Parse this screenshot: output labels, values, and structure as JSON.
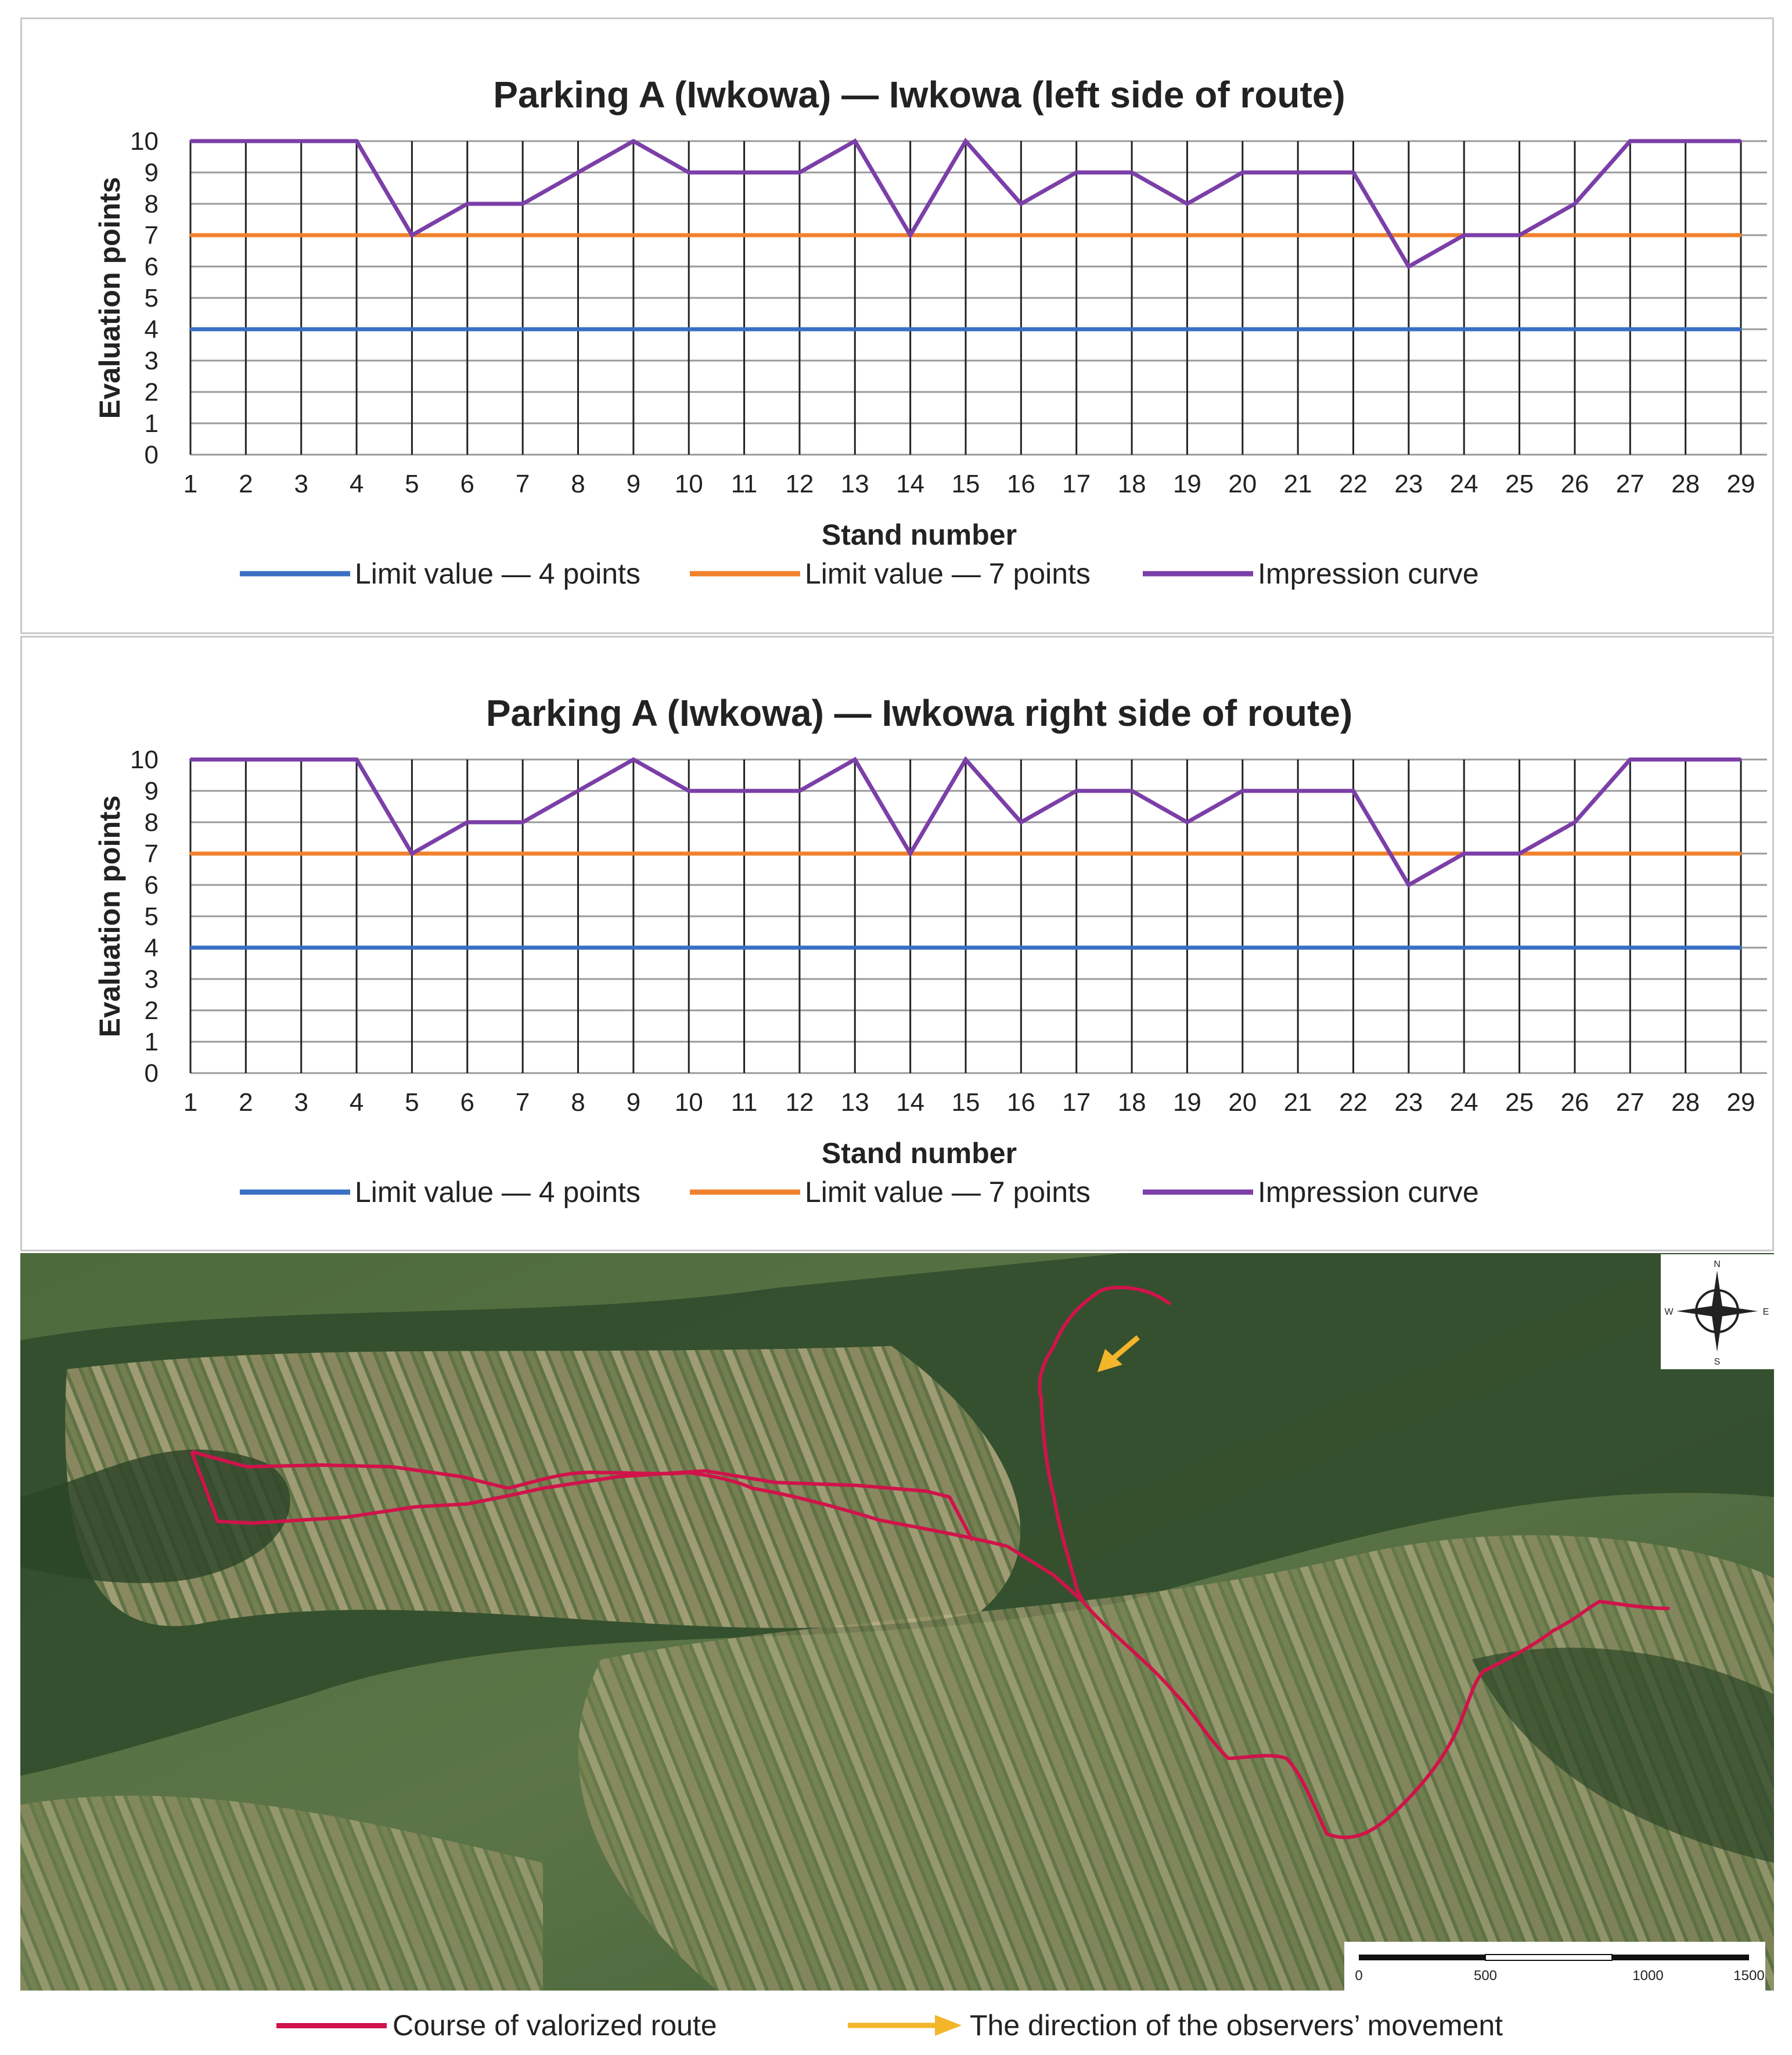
{
  "charts": [
    {
      "id": "left",
      "title": "Parking A (Iwkowa) — Iwkowa (left side of route)",
      "xlabel": "Stand number",
      "ylabel": "Evaluation points"
    },
    {
      "id": "right",
      "title": "Parking A (Iwkowa) — Iwkowa right side of route)",
      "xlabel": "Stand number",
      "ylabel": "Evaluation points"
    }
  ],
  "chart_data": [
    {
      "type": "line",
      "title": "Parking A (Iwkowa) — Iwkowa (left side of route)",
      "xlabel": "Stand number",
      "ylabel": "Evaluation points",
      "x": [
        1,
        2,
        3,
        4,
        5,
        6,
        7,
        8,
        9,
        10,
        11,
        12,
        13,
        14,
        15,
        16,
        17,
        18,
        19,
        20,
        21,
        22,
        23,
        24,
        25,
        26,
        27,
        28,
        29
      ],
      "ylim": [
        0,
        10
      ],
      "yticks": [
        0,
        1,
        2,
        3,
        4,
        5,
        6,
        7,
        8,
        9,
        10
      ],
      "grid": true,
      "legend": "bottom",
      "series": [
        {
          "name": "Limit value — 4 points",
          "color": "#3a6fc4",
          "values": [
            4,
            4,
            4,
            4,
            4,
            4,
            4,
            4,
            4,
            4,
            4,
            4,
            4,
            4,
            4,
            4,
            4,
            4,
            4,
            4,
            4,
            4,
            4,
            4,
            4,
            4,
            4,
            4,
            4
          ]
        },
        {
          "name": "Limit value — 7 points",
          "color": "#f0822d",
          "values": [
            7,
            7,
            7,
            7,
            7,
            7,
            7,
            7,
            7,
            7,
            7,
            7,
            7,
            7,
            7,
            7,
            7,
            7,
            7,
            7,
            7,
            7,
            7,
            7,
            7,
            7,
            7,
            7,
            7
          ]
        },
        {
          "name": "Impression curve",
          "color": "#7b3fa8",
          "values": [
            10,
            10,
            10,
            10,
            7,
            8,
            8,
            9,
            10,
            9,
            9,
            9,
            10,
            7,
            10,
            8,
            9,
            9,
            8,
            9,
            9,
            9,
            6,
            7,
            7,
            8,
            10,
            10,
            10
          ]
        }
      ]
    },
    {
      "type": "line",
      "title": "Parking A (Iwkowa) — Iwkowa right side of route)",
      "xlabel": "Stand number",
      "ylabel": "Evaluation points",
      "x": [
        1,
        2,
        3,
        4,
        5,
        6,
        7,
        8,
        9,
        10,
        11,
        12,
        13,
        14,
        15,
        16,
        17,
        18,
        19,
        20,
        21,
        22,
        23,
        24,
        25,
        26,
        27,
        28,
        29
      ],
      "ylim": [
        0,
        10
      ],
      "yticks": [
        0,
        1,
        2,
        3,
        4,
        5,
        6,
        7,
        8,
        9,
        10
      ],
      "grid": true,
      "legend": "bottom",
      "series": [
        {
          "name": "Limit value — 4 points",
          "color": "#3a6fc4",
          "values": [
            4,
            4,
            4,
            4,
            4,
            4,
            4,
            4,
            4,
            4,
            4,
            4,
            4,
            4,
            4,
            4,
            4,
            4,
            4,
            4,
            4,
            4,
            4,
            4,
            4,
            4,
            4,
            4,
            4
          ]
        },
        {
          "name": "Limit value — 7 points",
          "color": "#f0822d",
          "values": [
            7,
            7,
            7,
            7,
            7,
            7,
            7,
            7,
            7,
            7,
            7,
            7,
            7,
            7,
            7,
            7,
            7,
            7,
            7,
            7,
            7,
            7,
            7,
            7,
            7,
            7,
            7,
            7,
            7
          ]
        },
        {
          "name": "Impression curve",
          "color": "#7b3fa8",
          "values": [
            10,
            10,
            10,
            10,
            7,
            8,
            8,
            9,
            10,
            9,
            9,
            9,
            10,
            7,
            10,
            8,
            9,
            9,
            8,
            9,
            9,
            9,
            6,
            7,
            7,
            8,
            10,
            10,
            10
          ]
        }
      ]
    }
  ],
  "map": {
    "compass": {
      "n": "N",
      "s": "S",
      "e": "E",
      "w": "W"
    },
    "scale_labels": [
      "0",
      "500",
      "1000",
      "1500"
    ],
    "route_color": "#d0134a",
    "arrow_color": "#f3b52a"
  },
  "legend_bottom": {
    "route": "Course of valorized route",
    "direction": "The direction of the observers’ movement"
  }
}
